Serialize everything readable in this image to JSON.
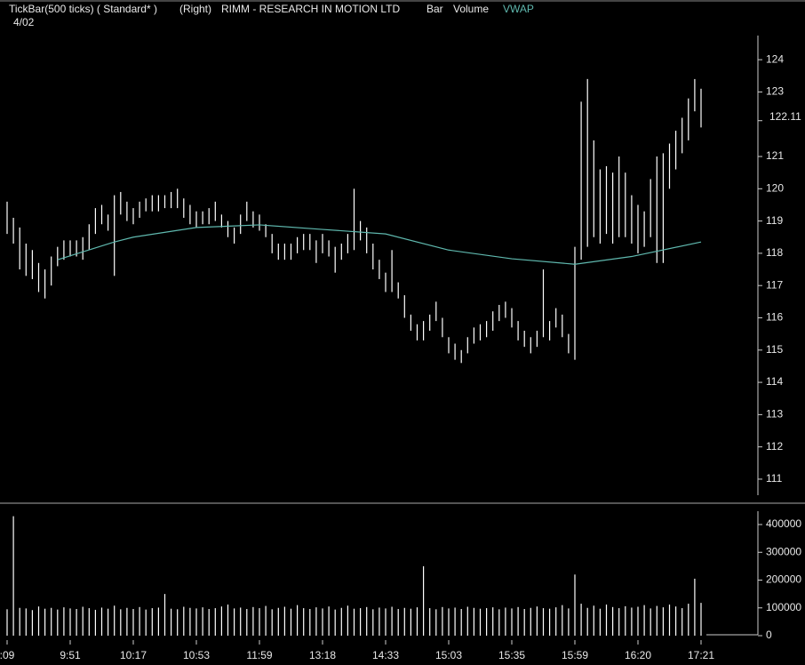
{
  "header": {
    "study": "TickBar(500 ticks) ( Standard* )",
    "side": "(Right)",
    "symbol": "RIMM - RESEARCH IN MOTION LTD",
    "date": "4/02"
  },
  "chart_data": [
    {
      "type": "range_bar",
      "series": [
        {
          "name": "Bar",
          "color": "#ffffff",
          "high": [
            119.6,
            119.1,
            118.8,
            118.3,
            118.1,
            117.7,
            117.5,
            117.9,
            118.2,
            118.4,
            118.4,
            118.4,
            118.5,
            118.9,
            119.4,
            119.5,
            119.2,
            119.8,
            119.9,
            119.6,
            119.4,
            119.6,
            119.7,
            119.8,
            119.8,
            119.8,
            119.9,
            120.0,
            119.7,
            119.5,
            119.3,
            119.3,
            119.4,
            119.6,
            119.2,
            119.0,
            118.8,
            119.2,
            119.6,
            119.3,
            119.2,
            118.9,
            118.6,
            118.3,
            118.3,
            118.3,
            118.5,
            118.6,
            118.6,
            118.4,
            118.6,
            118.4,
            118.2,
            118.3,
            118.6,
            120.0,
            119.0,
            118.8,
            118.3,
            117.8,
            117.4,
            118.1,
            117.1,
            116.7,
            116.1,
            115.8,
            115.9,
            116.1,
            116.5,
            116.0,
            115.4,
            115.2,
            115.0,
            115.4,
            115.7,
            115.8,
            115.9,
            116.2,
            116.4,
            116.5,
            116.3,
            115.9,
            115.6,
            115.4,
            115.6,
            117.5,
            115.9,
            116.3,
            116.1,
            115.5,
            118.2,
            122.7,
            123.4,
            121.5,
            120.6,
            120.7,
            120.5,
            121.0,
            120.5,
            119.8,
            119.5,
            119.3,
            120.3,
            121.0,
            121.1,
            121.4,
            121.8,
            122.2,
            122.8,
            123.4,
            123.1
          ],
          "low": [
            118.6,
            118.3,
            117.5,
            117.3,
            117.2,
            116.8,
            116.6,
            117.0,
            117.6,
            117.8,
            117.9,
            117.9,
            117.8,
            118.1,
            118.6,
            118.9,
            118.7,
            117.3,
            119.2,
            119.0,
            118.9,
            119.1,
            119.3,
            119.3,
            119.3,
            119.4,
            119.4,
            119.4,
            119.1,
            118.9,
            118.8,
            118.9,
            118.9,
            119.0,
            118.8,
            118.5,
            118.3,
            118.6,
            119.0,
            118.8,
            118.7,
            118.5,
            118.0,
            117.8,
            117.8,
            117.8,
            118.0,
            118.1,
            118.1,
            117.7,
            118.0,
            117.9,
            117.4,
            117.8,
            118.0,
            118.1,
            118.4,
            118.0,
            117.5,
            117.2,
            116.8,
            116.8,
            116.6,
            116.0,
            115.6,
            115.3,
            115.3,
            115.6,
            115.9,
            115.4,
            114.9,
            114.7,
            114.6,
            114.9,
            115.2,
            115.3,
            115.4,
            115.6,
            115.9,
            116.0,
            115.7,
            115.3,
            115.1,
            114.9,
            115.1,
            115.4,
            115.3,
            115.7,
            115.4,
            114.9,
            114.7,
            117.8,
            118.2,
            118.5,
            118.3,
            118.6,
            118.3,
            118.5,
            118.5,
            118.3,
            118.0,
            118.2,
            118.5,
            117.7,
            117.7,
            120.0,
            120.6,
            121.1,
            121.5,
            122.4,
            121.9
          ]
        },
        {
          "name": "VWAP",
          "color": "#5fb8ae",
          "x": [
            8,
            17,
            20,
            30,
            40,
            50,
            60,
            70,
            80,
            90,
            99,
            110
          ],
          "values": [
            117.8,
            118.35,
            118.5,
            118.8,
            118.88,
            118.74,
            118.6,
            118.1,
            117.83,
            117.66,
            117.9,
            118.35
          ]
        }
      ],
      "ylim": [
        110.42,
        125.85
      ],
      "yticks": [
        111,
        112,
        113,
        114,
        115,
        116,
        117,
        118,
        119,
        120,
        121,
        123,
        124
      ],
      "last_price": 122.11
    },
    {
      "type": "bar",
      "series": [
        {
          "name": "Volume",
          "color": "#ffffff",
          "values": [
            95000,
            430000,
            100000,
            98000,
            92000,
            105000,
            97000,
            100000,
            94000,
            102000,
            98000,
            96000,
            104000,
            99000,
            93000,
            101000,
            97000,
            108000,
            95000,
            100000,
            96000,
            103000,
            94000,
            99000,
            101000,
            150000,
            97000,
            95000,
            104000,
            100000,
            98000,
            102000,
            96000,
            99000,
            105000,
            112000,
            98000,
            101000,
            96000,
            103000,
            99000,
            107000,
            95000,
            100000,
            104000,
            97000,
            110000,
            99000,
            96000,
            102000,
            98000,
            105000,
            94000,
            100000,
            108000,
            97000,
            99000,
            103000,
            95000,
            101000,
            98000,
            104000,
            96000,
            100000,
            97000,
            102000,
            250000,
            99000,
            95000,
            103000,
            98000,
            101000,
            96000,
            104000,
            100000,
            97000,
            99000,
            102000,
            95000,
            101000,
            98000,
            103000,
            96000,
            100000,
            105000,
            99000,
            97000,
            102000,
            110000,
            98000,
            220000,
            115000,
            100000,
            108000,
            97000,
            112000,
            103000,
            99000,
            106000,
            101000,
            104000,
            110000,
            98000,
            107000,
            102000,
            112000,
            105000,
            99000,
            115000,
            205000,
            118000
          ]
        }
      ],
      "categories": [
        ":09",
        null,
        null,
        null,
        null,
        null,
        null,
        null,
        null,
        null,
        "9:51",
        null,
        null,
        null,
        null,
        null,
        null,
        null,
        null,
        null,
        "10:17",
        null,
        null,
        null,
        null,
        null,
        null,
        null,
        null,
        null,
        "10:53",
        null,
        null,
        null,
        null,
        null,
        null,
        null,
        null,
        null,
        "11:59",
        null,
        null,
        null,
        null,
        null,
        null,
        null,
        null,
        null,
        "13:18",
        null,
        null,
        null,
        null,
        null,
        null,
        null,
        null,
        null,
        "14:33",
        null,
        null,
        null,
        null,
        null,
        null,
        null,
        null,
        null,
        "15:03",
        null,
        null,
        null,
        null,
        null,
        null,
        null,
        null,
        null,
        "15:35",
        null,
        null,
        null,
        null,
        null,
        null,
        null,
        null,
        null,
        "15:59",
        null,
        null,
        null,
        null,
        null,
        null,
        null,
        null,
        null,
        "16:20",
        null,
        null,
        null,
        null,
        null,
        null,
        null,
        null,
        null,
        "17:21"
      ],
      "ylim": [
        -16000,
        473600
      ],
      "yticks": [
        0,
        100000,
        200000,
        300000,
        400000
      ]
    }
  ]
}
